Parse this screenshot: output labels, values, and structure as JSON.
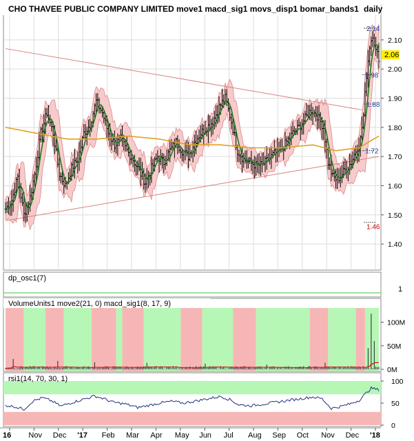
{
  "chart_data": {
    "type": "ohlc",
    "title": "CHO THAVEE PUBLIC COMPANY LIMITED move1 macd_sig1 movs_disp1 bomar_bands1",
    "interval": "daily",
    "grid": true,
    "x_months": [
      "16",
      "Nov",
      "Dec",
      "'17",
      "Feb",
      "Mar",
      "Apr",
      "May",
      "Jun",
      "Jul",
      "Aug",
      "Sep",
      "Oct",
      "Nov",
      "Dec",
      "'18"
    ],
    "price_panel": {
      "y_ticks": [
        "2.10",
        "2.00",
        "1.90",
        "1.80",
        "1.70",
        "1.60",
        "1.50",
        "1.40"
      ],
      "ylim": [
        1.32,
        2.18
      ],
      "last_price_label": "2.06",
      "annotations": [
        "2.14",
        "1.98",
        "1.88",
        "1.72",
        "1.46"
      ],
      "price_path": [
        [
          0,
          1.52
        ],
        [
          4,
          1.55
        ],
        [
          8,
          1.63
        ],
        [
          12,
          1.5
        ],
        [
          16,
          1.56
        ],
        [
          19,
          1.64
        ],
        [
          23,
          1.78
        ],
        [
          27,
          1.85
        ],
        [
          31,
          1.78
        ],
        [
          35,
          1.64
        ],
        [
          39,
          1.6
        ],
        [
          43,
          1.66
        ],
        [
          47,
          1.69
        ],
        [
          51,
          1.78
        ],
        [
          55,
          1.81
        ],
        [
          59,
          1.89
        ],
        [
          63,
          1.85
        ],
        [
          67,
          1.78
        ],
        [
          71,
          1.74
        ],
        [
          75,
          1.76
        ],
        [
          79,
          1.72
        ],
        [
          83,
          1.69
        ],
        [
          87,
          1.65
        ],
        [
          91,
          1.61
        ],
        [
          95,
          1.66
        ],
        [
          99,
          1.7
        ],
        [
          103,
          1.68
        ],
        [
          107,
          1.72
        ],
        [
          111,
          1.75
        ],
        [
          115,
          1.72
        ],
        [
          119,
          1.7
        ],
        [
          123,
          1.75
        ],
        [
          127,
          1.78
        ],
        [
          131,
          1.8
        ],
        [
          135,
          1.82
        ],
        [
          139,
          1.87
        ],
        [
          143,
          1.9
        ],
        [
          147,
          1.82
        ],
        [
          151,
          1.72
        ],
        [
          155,
          1.69
        ],
        [
          159,
          1.68
        ],
        [
          163,
          1.67
        ],
        [
          167,
          1.67
        ],
        [
          171,
          1.69
        ],
        [
          175,
          1.71
        ],
        [
          179,
          1.72
        ],
        [
          183,
          1.75
        ],
        [
          187,
          1.78
        ],
        [
          191,
          1.8
        ],
        [
          195,
          1.83
        ],
        [
          199,
          1.86
        ],
        [
          203,
          1.84
        ],
        [
          207,
          1.8
        ],
        [
          210,
          1.68
        ],
        [
          213,
          1.63
        ],
        [
          216,
          1.62
        ],
        [
          219,
          1.64
        ],
        [
          222,
          1.66
        ],
        [
          225,
          1.68
        ],
        [
          228,
          1.72
        ],
        [
          231,
          1.76
        ],
        [
          233,
          1.84
        ],
        [
          235,
          1.98
        ],
        [
          237,
          2.08
        ],
        [
          239,
          2.12
        ],
        [
          241,
          2.06
        ],
        [
          243,
          2.04
        ]
      ],
      "ma_path": [
        [
          0,
          1.8
        ],
        [
          20,
          1.78
        ],
        [
          40,
          1.76
        ],
        [
          60,
          1.76
        ],
        [
          80,
          1.77
        ],
        [
          100,
          1.76
        ],
        [
          120,
          1.74
        ],
        [
          140,
          1.74
        ],
        [
          160,
          1.73
        ],
        [
          180,
          1.73
        ],
        [
          200,
          1.74
        ],
        [
          215,
          1.72
        ],
        [
          230,
          1.73
        ],
        [
          243,
          1.77
        ]
      ],
      "trendline_upper": [
        [
          0,
          2.07
        ],
        [
          232,
          1.86
        ]
      ],
      "trendline_lower": [
        [
          0,
          1.48
        ],
        [
          243,
          1.7
        ]
      ],
      "band_width": 0.035,
      "bar_count": 244
    },
    "dp_osc_panel": {
      "label": "dp_osc1(7)",
      "right_label": "1"
    },
    "volume_panel": {
      "label": "VolumeUnits1 move2(21, 0) macd_sig1(8, 17, 9)",
      "y_ticks": [
        "100M",
        "50M",
        "0M"
      ],
      "ylim": [
        0,
        130
      ],
      "signal_regions": [
        {
          "from": 0,
          "to": 12,
          "state": "bear"
        },
        {
          "from": 12,
          "to": 26,
          "state": "bull"
        },
        {
          "from": 26,
          "to": 38,
          "state": "bear"
        },
        {
          "from": 38,
          "to": 56,
          "state": "bull"
        },
        {
          "from": 56,
          "to": 72,
          "state": "bear"
        },
        {
          "from": 72,
          "to": 76,
          "state": "bull"
        },
        {
          "from": 76,
          "to": 90,
          "state": "bear"
        },
        {
          "from": 90,
          "to": 114,
          "state": "bull"
        },
        {
          "from": 114,
          "to": 128,
          "state": "bear"
        },
        {
          "from": 128,
          "to": 148,
          "state": "bull"
        },
        {
          "from": 148,
          "to": 163,
          "state": "bear"
        },
        {
          "from": 163,
          "to": 198,
          "state": "bull"
        },
        {
          "from": 198,
          "to": 210,
          "state": "bear"
        },
        {
          "from": 210,
          "to": 228,
          "state": "bull"
        },
        {
          "from": 228,
          "to": 234,
          "state": "bear"
        },
        {
          "from": 234,
          "to": 244,
          "state": "bull"
        }
      ],
      "spikes": [
        [
          5,
          22
        ],
        [
          34,
          18
        ],
        [
          58,
          15
        ],
        [
          92,
          14
        ],
        [
          130,
          12
        ],
        [
          170,
          10
        ],
        [
          208,
          14
        ],
        [
          236,
          45
        ],
        [
          238,
          118
        ],
        [
          240,
          60
        ]
      ]
    },
    "rsi_panel": {
      "label": "rsi1(14, 70, 30, 1)",
      "y_ticks": [
        "100",
        "50",
        "0"
      ],
      "ylim": [
        0,
        100
      ],
      "overbought": 70,
      "oversold": 30,
      "rsi_path": [
        [
          0,
          45
        ],
        [
          6,
          42
        ],
        [
          12,
          36
        ],
        [
          18,
          55
        ],
        [
          24,
          62
        ],
        [
          30,
          55
        ],
        [
          36,
          43
        ],
        [
          42,
          50
        ],
        [
          50,
          58
        ],
        [
          58,
          66
        ],
        [
          64,
          60
        ],
        [
          70,
          52
        ],
        [
          78,
          48
        ],
        [
          86,
          40
        ],
        [
          92,
          44
        ],
        [
          100,
          50
        ],
        [
          108,
          54
        ],
        [
          116,
          50
        ],
        [
          124,
          55
        ],
        [
          132,
          60
        ],
        [
          140,
          65
        ],
        [
          146,
          58
        ],
        [
          152,
          46
        ],
        [
          160,
          44
        ],
        [
          168,
          48
        ],
        [
          176,
          52
        ],
        [
          184,
          56
        ],
        [
          192,
          60
        ],
        [
          200,
          64
        ],
        [
          206,
          60
        ],
        [
          212,
          38
        ],
        [
          218,
          42
        ],
        [
          224,
          48
        ],
        [
          230,
          56
        ],
        [
          234,
          70
        ],
        [
          238,
          84
        ],
        [
          243,
          80
        ]
      ]
    },
    "colors": {
      "price_bars": "#000000",
      "move1": "#1a7a1a",
      "ma_long": "#e0a020",
      "band_fill": "#f7c6c6",
      "band_edge": "#d47070",
      "trendline": "#d98080",
      "bull": "#b6f7b6",
      "bear": "#f7b6b6",
      "rsi_line": "#1f2f7a",
      "volume_ma": "#d02020",
      "last_price_bg": "#ffee00"
    }
  }
}
